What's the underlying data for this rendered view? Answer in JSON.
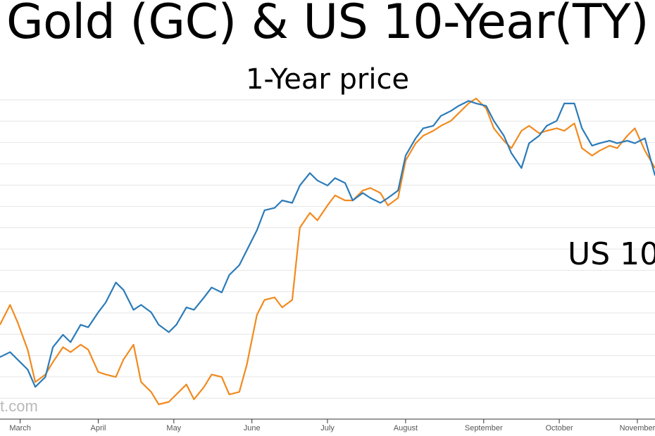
{
  "title": "Gold (GC) & US 10-Year(TY)",
  "subtitle": "1-Year price",
  "overlay_label": "US 10",
  "watermark": "t.com",
  "colors": {
    "gold_series": "#f28a1e",
    "treasury_series": "#2b7bb9",
    "grid": "#e6e6e6"
  },
  "chart_data": {
    "type": "line",
    "title": "Gold (GC) & US 10-Year(TY)",
    "subtitle": "1-Year price",
    "x_ticks": [
      "March",
      "April",
      "May",
      "June",
      "July",
      "August",
      "September",
      "October",
      "November"
    ],
    "x_range": [
      "2019-02-21",
      "2019-11-08"
    ],
    "y_axis": "none",
    "grid": "horizontal",
    "series": [
      {
        "color": "#2b7bb9",
        "points": [
          [
            "2019-02-21",
            17
          ],
          [
            "2019-02-25",
            19
          ],
          [
            "2019-02-28",
            16
          ],
          [
            "2019-03-04",
            12
          ],
          [
            "2019-03-07",
            5
          ],
          [
            "2019-03-11",
            9
          ],
          [
            "2019-03-14",
            21
          ],
          [
            "2019-03-18",
            26
          ],
          [
            "2019-03-21",
            23
          ],
          [
            "2019-03-25",
            30
          ],
          [
            "2019-03-28",
            29
          ],
          [
            "2019-04-01",
            35
          ],
          [
            "2019-04-04",
            39
          ],
          [
            "2019-04-08",
            47
          ],
          [
            "2019-04-11",
            44
          ],
          [
            "2019-04-15",
            36
          ],
          [
            "2019-04-18",
            38
          ],
          [
            "2019-04-22",
            35
          ],
          [
            "2019-04-25",
            30
          ],
          [
            "2019-04-29",
            27
          ],
          [
            "2019-05-02",
            30
          ],
          [
            "2019-05-06",
            37
          ],
          [
            "2019-05-09",
            36
          ],
          [
            "2019-05-13",
            41
          ],
          [
            "2019-05-16",
            45
          ],
          [
            "2019-05-20",
            43
          ],
          [
            "2019-05-23",
            50
          ],
          [
            "2019-05-27",
            54
          ],
          [
            "2019-05-30",
            60
          ],
          [
            "2019-06-03",
            68
          ],
          [
            "2019-06-06",
            76
          ],
          [
            "2019-06-10",
            77
          ],
          [
            "2019-06-13",
            80
          ],
          [
            "2019-06-17",
            79
          ],
          [
            "2019-06-20",
            86
          ],
          [
            "2019-06-24",
            91
          ],
          [
            "2019-06-27",
            88
          ],
          [
            "2019-07-01",
            86
          ],
          [
            "2019-07-04",
            89
          ],
          [
            "2019-07-08",
            87
          ],
          [
            "2019-07-11",
            80
          ],
          [
            "2019-07-15",
            83
          ],
          [
            "2019-07-18",
            81
          ],
          [
            "2019-07-22",
            79
          ],
          [
            "2019-07-25",
            81
          ],
          [
            "2019-07-29",
            84
          ],
          [
            "2019-08-01",
            98
          ],
          [
            "2019-08-05",
            105
          ],
          [
            "2019-08-08",
            109
          ],
          [
            "2019-08-12",
            110
          ],
          [
            "2019-08-15",
            114
          ],
          [
            "2019-08-19",
            116
          ],
          [
            "2019-08-22",
            118
          ],
          [
            "2019-08-26",
            120
          ],
          [
            "2019-08-29",
            119
          ],
          [
            "2019-09-02",
            118
          ],
          [
            "2019-09-05",
            112
          ],
          [
            "2019-09-09",
            106
          ],
          [
            "2019-09-12",
            99
          ],
          [
            "2019-09-16",
            93
          ],
          [
            "2019-09-19",
            103
          ],
          [
            "2019-09-23",
            106
          ],
          [
            "2019-09-26",
            110
          ],
          [
            "2019-09-30",
            112
          ],
          [
            "2019-10-03",
            119
          ],
          [
            "2019-10-07",
            119
          ],
          [
            "2019-10-10",
            109
          ],
          [
            "2019-10-14",
            102
          ],
          [
            "2019-10-17",
            103
          ],
          [
            "2019-10-21",
            104
          ],
          [
            "2019-10-24",
            103
          ],
          [
            "2019-10-28",
            104
          ],
          [
            "2019-10-31",
            103
          ],
          [
            "2019-11-04",
            105
          ],
          [
            "2019-11-08",
            90
          ]
        ]
      },
      {
        "color": "#f28a1e",
        "points": [
          [
            "2019-02-21",
            30
          ],
          [
            "2019-02-25",
            38
          ],
          [
            "2019-02-28",
            31
          ],
          [
            "2019-03-04",
            20
          ],
          [
            "2019-03-07",
            7
          ],
          [
            "2019-03-11",
            10
          ],
          [
            "2019-03-14",
            15
          ],
          [
            "2019-03-18",
            21
          ],
          [
            "2019-03-21",
            19
          ],
          [
            "2019-03-25",
            22
          ],
          [
            "2019-03-28",
            20
          ],
          [
            "2019-04-01",
            11
          ],
          [
            "2019-04-04",
            10
          ],
          [
            "2019-04-08",
            9
          ],
          [
            "2019-04-11",
            16
          ],
          [
            "2019-04-15",
            22
          ],
          [
            "2019-04-18",
            7
          ],
          [
            "2019-04-22",
            3
          ],
          [
            "2019-04-25",
            -2
          ],
          [
            "2019-04-29",
            -1
          ],
          [
            "2019-05-02",
            2
          ],
          [
            "2019-05-06",
            6
          ],
          [
            "2019-05-09",
            0
          ],
          [
            "2019-05-13",
            5
          ],
          [
            "2019-05-16",
            10
          ],
          [
            "2019-05-20",
            9
          ],
          [
            "2019-05-23",
            2
          ],
          [
            "2019-05-27",
            3
          ],
          [
            "2019-05-30",
            14
          ],
          [
            "2019-06-03",
            34
          ],
          [
            "2019-06-06",
            40
          ],
          [
            "2019-06-10",
            41
          ],
          [
            "2019-06-13",
            37
          ],
          [
            "2019-06-17",
            40
          ],
          [
            "2019-06-20",
            69
          ],
          [
            "2019-06-24",
            75
          ],
          [
            "2019-06-27",
            72
          ],
          [
            "2019-07-01",
            78
          ],
          [
            "2019-07-04",
            82
          ],
          [
            "2019-07-08",
            80
          ],
          [
            "2019-07-11",
            80
          ],
          [
            "2019-07-15",
            84
          ],
          [
            "2019-07-18",
            85
          ],
          [
            "2019-07-22",
            83
          ],
          [
            "2019-07-25",
            78
          ],
          [
            "2019-07-29",
            81
          ],
          [
            "2019-08-01",
            96
          ],
          [
            "2019-08-05",
            103
          ],
          [
            "2019-08-08",
            106
          ],
          [
            "2019-08-12",
            108
          ],
          [
            "2019-08-15",
            110
          ],
          [
            "2019-08-19",
            112
          ],
          [
            "2019-08-22",
            115
          ],
          [
            "2019-08-26",
            119
          ],
          [
            "2019-08-29",
            121
          ],
          [
            "2019-09-02",
            117
          ],
          [
            "2019-09-05",
            109
          ],
          [
            "2019-09-09",
            104
          ],
          [
            "2019-09-12",
            101
          ],
          [
            "2019-09-16",
            108
          ],
          [
            "2019-09-19",
            110
          ],
          [
            "2019-09-23",
            107
          ],
          [
            "2019-09-26",
            108
          ],
          [
            "2019-09-30",
            109
          ],
          [
            "2019-10-03",
            108
          ],
          [
            "2019-10-07",
            111
          ],
          [
            "2019-10-10",
            101
          ],
          [
            "2019-10-14",
            98
          ],
          [
            "2019-10-17",
            100
          ],
          [
            "2019-10-21",
            102
          ],
          [
            "2019-10-24",
            101
          ],
          [
            "2019-10-28",
            106
          ],
          [
            "2019-10-31",
            109
          ],
          [
            "2019-11-04",
            100
          ],
          [
            "2019-11-08",
            93
          ]
        ]
      }
    ]
  }
}
